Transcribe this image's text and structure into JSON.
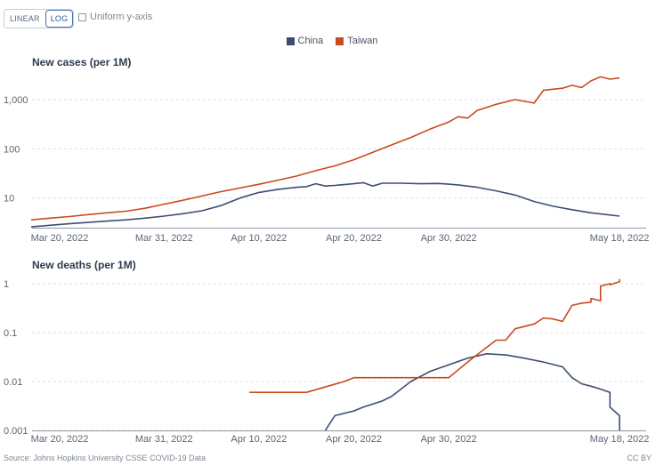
{
  "controls": {
    "linear_label": "LINEAR",
    "log_label": "LOG",
    "active_scale": "log",
    "uniform_label": "Uniform y-axis",
    "uniform_checked": false
  },
  "legend": [
    {
      "name": "China",
      "color": "#3d4d72"
    },
    {
      "name": "Taiwan",
      "color": "#c94a20"
    }
  ],
  "footer": {
    "source": "Source: Johns Hopkins University CSSE COVID-19 Data",
    "license": "CC BY"
  },
  "chart_data": [
    {
      "type": "line",
      "title": "New cases (per 1M)",
      "yscale": "log",
      "ylim": [
        2.5,
        3200
      ],
      "yticks": [
        10,
        100,
        1000
      ],
      "ytick_labels": [
        "10",
        "100",
        "1,000"
      ],
      "xlim": [
        "2022-03-17",
        "2022-05-18"
      ],
      "xticks": [
        "2022-03-20",
        "2022-03-31",
        "2022-04-10",
        "2022-04-20",
        "2022-04-30",
        "2022-05-18"
      ],
      "xtick_labels": [
        "Mar 20, 2022",
        "Mar 31, 2022",
        "Apr 10, 2022",
        "Apr 20, 2022",
        "Apr 30, 2022",
        "May 18, 2022"
      ],
      "grid": true,
      "series": [
        {
          "name": "China",
          "color": "#3d4d72",
          "points": [
            [
              "2022-03-17",
              2.6
            ],
            [
              "2022-03-19",
              2.8
            ],
            [
              "2022-03-21",
              3.0
            ],
            [
              "2022-03-23",
              3.2
            ],
            [
              "2022-03-25",
              3.4
            ],
            [
              "2022-03-27",
              3.6
            ],
            [
              "2022-03-29",
              3.9
            ],
            [
              "2022-03-31",
              4.3
            ],
            [
              "2022-04-02",
              4.8
            ],
            [
              "2022-04-04",
              5.5
            ],
            [
              "2022-04-06",
              7.0
            ],
            [
              "2022-04-08",
              10.0
            ],
            [
              "2022-04-10",
              13.0
            ],
            [
              "2022-04-12",
              15.0
            ],
            [
              "2022-04-14",
              16.5
            ],
            [
              "2022-04-15",
              17.0
            ],
            [
              "2022-04-16",
              19.5
            ],
            [
              "2022-04-17",
              17.5
            ],
            [
              "2022-04-18",
              18.0
            ],
            [
              "2022-04-20",
              19.5
            ],
            [
              "2022-04-21",
              20.5
            ],
            [
              "2022-04-22",
              17.5
            ],
            [
              "2022-04-23",
              20.0
            ],
            [
              "2022-04-25",
              20.0
            ],
            [
              "2022-04-27",
              19.5
            ],
            [
              "2022-04-29",
              19.8
            ],
            [
              "2022-05-01",
              18.5
            ],
            [
              "2022-05-03",
              16.5
            ],
            [
              "2022-05-05",
              14.0
            ],
            [
              "2022-05-07",
              11.5
            ],
            [
              "2022-05-09",
              8.5
            ],
            [
              "2022-05-11",
              6.8
            ],
            [
              "2022-05-13",
              5.8
            ],
            [
              "2022-05-15",
              5.0
            ],
            [
              "2022-05-18",
              4.3
            ]
          ]
        },
        {
          "name": "Taiwan",
          "color": "#c94a20",
          "points": [
            [
              "2022-03-17",
              3.6
            ],
            [
              "2022-03-19",
              3.9
            ],
            [
              "2022-03-21",
              4.2
            ],
            [
              "2022-03-23",
              4.6
            ],
            [
              "2022-03-25",
              5.0
            ],
            [
              "2022-03-27",
              5.4
            ],
            [
              "2022-03-29",
              6.2
            ],
            [
              "2022-03-31",
              7.5
            ],
            [
              "2022-04-02",
              9.0
            ],
            [
              "2022-04-04",
              11.0
            ],
            [
              "2022-04-06",
              13.5
            ],
            [
              "2022-04-08",
              16.0
            ],
            [
              "2022-04-10",
              19.0
            ],
            [
              "2022-04-12",
              23.0
            ],
            [
              "2022-04-14",
              28.0
            ],
            [
              "2022-04-16",
              36.0
            ],
            [
              "2022-04-18",
              45.0
            ],
            [
              "2022-04-20",
              60.0
            ],
            [
              "2022-04-22",
              85.0
            ],
            [
              "2022-04-24",
              120.0
            ],
            [
              "2022-04-26",
              170.0
            ],
            [
              "2022-04-28",
              250.0
            ],
            [
              "2022-04-30",
              350.0
            ],
            [
              "2022-05-01",
              450.0
            ],
            [
              "2022-05-02",
              420.0
            ],
            [
              "2022-05-03",
              600.0
            ],
            [
              "2022-05-05",
              800.0
            ],
            [
              "2022-05-07",
              1000.0
            ],
            [
              "2022-05-09",
              850.0
            ],
            [
              "2022-05-10",
              1550.0
            ],
            [
              "2022-05-12",
              1700.0
            ],
            [
              "2022-05-13",
              1950.0
            ],
            [
              "2022-05-14",
              1750.0
            ],
            [
              "2022-05-15",
              2400.0
            ],
            [
              "2022-05-16",
              2900.0
            ],
            [
              "2022-05-17",
              2600.0
            ],
            [
              "2022-05-18",
              2750.0
            ]
          ]
        }
      ]
    },
    {
      "type": "line",
      "title": "New deaths (per 1M)",
      "yscale": "log",
      "ylim": [
        0.001,
        1.4
      ],
      "yticks": [
        0.001,
        0.01,
        0.1,
        1
      ],
      "ytick_labels": [
        "0.001",
        "0.01",
        "0.1",
        "1"
      ],
      "xlim": [
        "2022-03-17",
        "2022-05-18"
      ],
      "xticks": [
        "2022-03-20",
        "2022-03-31",
        "2022-04-10",
        "2022-04-20",
        "2022-04-30",
        "2022-05-18"
      ],
      "xtick_labels": [
        "Mar 20, 2022",
        "Mar 31, 2022",
        "Apr 10, 2022",
        "Apr 20, 2022",
        "Apr 30, 2022",
        "May 18, 2022"
      ],
      "grid": true,
      "series": [
        {
          "name": "China",
          "color": "#3d4d72",
          "points": [
            [
              "2022-04-17",
              0.001
            ],
            [
              "2022-04-18",
              0.002
            ],
            [
              "2022-04-20",
              0.0025
            ],
            [
              "2022-04-21",
              0.003
            ],
            [
              "2022-04-23",
              0.004
            ],
            [
              "2022-04-24",
              0.005
            ],
            [
              "2022-04-26",
              0.01
            ],
            [
              "2022-04-28",
              0.016
            ],
            [
              "2022-04-30",
              0.022
            ],
            [
              "2022-05-02",
              0.03
            ],
            [
              "2022-05-04",
              0.037
            ],
            [
              "2022-05-06",
              0.035
            ],
            [
              "2022-05-08",
              0.03
            ],
            [
              "2022-05-10",
              0.025
            ],
            [
              "2022-05-12",
              0.02
            ],
            [
              "2022-05-13",
              0.012
            ],
            [
              "2022-05-14",
              0.009
            ],
            [
              "2022-05-15",
              0.008
            ],
            [
              "2022-05-16",
              0.007
            ],
            [
              "2022-05-17",
              0.006
            ],
            [
              "2022-05-17",
              0.005
            ],
            [
              "2022-05-17",
              0.004
            ],
            [
              "2022-05-17",
              0.003
            ],
            [
              "2022-05-17",
              0.003
            ],
            [
              "2022-05-18",
              0.002
            ],
            [
              "2022-05-18",
              0.002
            ],
            [
              "2022-05-18",
              0.001
            ]
          ]
        },
        {
          "name": "Taiwan",
          "color": "#c94a20",
          "points": [
            [
              "2022-04-09",
              0.006
            ],
            [
              "2022-04-15",
              0.006
            ],
            [
              "2022-04-19",
              0.01
            ],
            [
              "2022-04-20",
              0.012
            ],
            [
              "2022-04-22",
              0.012
            ],
            [
              "2022-04-30",
              0.012
            ],
            [
              "2022-05-02",
              0.025
            ],
            [
              "2022-05-04",
              0.05
            ],
            [
              "2022-05-05",
              0.07
            ],
            [
              "2022-05-06",
              0.07
            ],
            [
              "2022-05-07",
              0.12
            ],
            [
              "2022-05-09",
              0.15
            ],
            [
              "2022-05-10",
              0.2
            ],
            [
              "2022-05-11",
              0.19
            ],
            [
              "2022-05-12",
              0.17
            ],
            [
              "2022-05-13",
              0.36
            ],
            [
              "2022-05-14",
              0.4
            ],
            [
              "2022-05-15",
              0.42
            ],
            [
              "2022-05-15",
              0.5
            ],
            [
              "2022-05-16",
              0.45
            ],
            [
              "2022-05-16",
              0.9
            ],
            [
              "2022-05-17",
              1.0
            ],
            [
              "2022-05-17",
              0.95
            ],
            [
              "2022-05-18",
              1.1
            ],
            [
              "2022-05-18",
              1.25
            ]
          ]
        }
      ]
    }
  ]
}
